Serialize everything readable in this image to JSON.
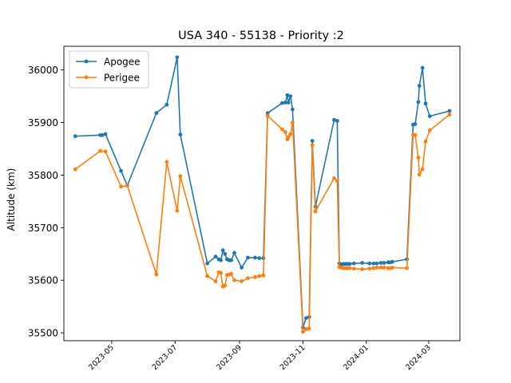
{
  "chart_data": {
    "type": "line",
    "title": "USA 340 - 55138 - Priority :2",
    "xlabel": "",
    "ylabel": "Altitude (km)",
    "x_type": "date",
    "xlim": [
      "2023-03-16",
      "2024-03-31"
    ],
    "ylim": [
      35485,
      36045
    ],
    "x_ticks": [
      "2023-05-01",
      "2023-07-01",
      "2023-09-01",
      "2023-11-01",
      "2024-01-01",
      "2024-03-01"
    ],
    "x_tick_labels": [
      "2023-05",
      "2023-07",
      "2023-09",
      "2023-11",
      "2024-01",
      "2024-03"
    ],
    "y_ticks": [
      35500,
      35600,
      35700,
      35800,
      35900,
      36000
    ],
    "y_tick_labels": [
      "35500",
      "35600",
      "35700",
      "35800",
      "35900",
      "36000"
    ],
    "grid": false,
    "legend_position": "top-left",
    "series": [
      {
        "name": "Apogee",
        "color": "#1f77b4",
        "points": [
          [
            "2023-03-27",
            35874
          ],
          [
            "2023-04-20",
            35876
          ],
          [
            "2023-04-22",
            35876
          ],
          [
            "2023-04-25",
            35878
          ],
          [
            "2023-05-10",
            35808
          ],
          [
            "2023-05-16",
            35780
          ],
          [
            "2023-06-13",
            35918
          ],
          [
            "2023-06-23",
            35934
          ],
          [
            "2023-07-03",
            36024
          ],
          [
            "2023-07-06",
            35877
          ],
          [
            "2023-08-01",
            35632
          ],
          [
            "2023-08-09",
            35645
          ],
          [
            "2023-08-12",
            35640
          ],
          [
            "2023-08-14",
            35638
          ],
          [
            "2023-08-16",
            35657
          ],
          [
            "2023-08-18",
            35650
          ],
          [
            "2023-08-20",
            35640
          ],
          [
            "2023-08-22",
            35638
          ],
          [
            "2023-08-24",
            35638
          ],
          [
            "2023-08-27",
            35652
          ],
          [
            "2023-09-03",
            35624
          ],
          [
            "2023-09-09",
            35643
          ],
          [
            "2023-09-16",
            35643
          ],
          [
            "2023-09-20",
            35642
          ],
          [
            "2023-09-24",
            35642
          ],
          [
            "2023-09-28",
            35918
          ],
          [
            "2023-10-12",
            35937
          ],
          [
            "2023-10-15",
            35938
          ],
          [
            "2023-10-17",
            35952
          ],
          [
            "2023-10-18",
            35938
          ],
          [
            "2023-10-20",
            35950
          ],
          [
            "2023-10-22",
            35925
          ],
          [
            "2023-11-01",
            35510
          ],
          [
            "2023-11-04",
            35528
          ],
          [
            "2023-11-07",
            35530
          ],
          [
            "2023-11-10",
            35865
          ],
          [
            "2023-11-13",
            35740
          ],
          [
            "2023-12-01",
            35905
          ],
          [
            "2023-12-04",
            35903
          ],
          [
            "2023-12-06",
            35632
          ],
          [
            "2023-12-08",
            35630
          ],
          [
            "2023-12-10",
            35631
          ],
          [
            "2023-12-12",
            35631
          ],
          [
            "2023-12-14",
            35631
          ],
          [
            "2023-12-16",
            35631
          ],
          [
            "2023-12-20",
            35632
          ],
          [
            "2023-12-28",
            35633
          ],
          [
            "2024-01-04",
            35632
          ],
          [
            "2024-01-08",
            35632
          ],
          [
            "2024-01-11",
            35632
          ],
          [
            "2024-01-15",
            35633
          ],
          [
            "2024-01-18",
            35633
          ],
          [
            "2024-01-22",
            35634
          ],
          [
            "2024-01-24",
            35634
          ],
          [
            "2024-01-26",
            35635
          ],
          [
            "2024-02-09",
            35640
          ],
          [
            "2024-02-15",
            35896
          ],
          [
            "2024-02-17",
            35897
          ],
          [
            "2024-02-20",
            35939
          ],
          [
            "2024-02-21",
            35970
          ],
          [
            "2024-02-24",
            36004
          ],
          [
            "2024-02-27",
            35936
          ],
          [
            "2024-03-02",
            35912
          ],
          [
            "2024-03-21",
            35922
          ]
        ]
      },
      {
        "name": "Perigee",
        "color": "#ff7f0e",
        "points": [
          [
            "2023-03-27",
            35811
          ],
          [
            "2023-04-20",
            35846
          ],
          [
            "2023-04-25",
            35845
          ],
          [
            "2023-05-10",
            35778
          ],
          [
            "2023-05-16",
            35780
          ],
          [
            "2023-06-13",
            35611
          ],
          [
            "2023-06-23",
            35825
          ],
          [
            "2023-07-03",
            35732
          ],
          [
            "2023-07-06",
            35798
          ],
          [
            "2023-08-01",
            35608
          ],
          [
            "2023-08-09",
            35598
          ],
          [
            "2023-08-12",
            35615
          ],
          [
            "2023-08-14",
            35614
          ],
          [
            "2023-08-16",
            35588
          ],
          [
            "2023-08-18",
            35590
          ],
          [
            "2023-08-20",
            35610
          ],
          [
            "2023-08-22",
            35611
          ],
          [
            "2023-08-24",
            35612
          ],
          [
            "2023-08-27",
            35600
          ],
          [
            "2023-09-03",
            35598
          ],
          [
            "2023-09-09",
            35604
          ],
          [
            "2023-09-16",
            35606
          ],
          [
            "2023-09-20",
            35608
          ],
          [
            "2023-09-24",
            35609
          ],
          [
            "2023-09-28",
            35913
          ],
          [
            "2023-10-12",
            35887
          ],
          [
            "2023-10-15",
            35882
          ],
          [
            "2023-10-17",
            35868
          ],
          [
            "2023-10-18",
            35872
          ],
          [
            "2023-10-20",
            35878
          ],
          [
            "2023-10-22",
            35900
          ],
          [
            "2023-11-01",
            35502
          ],
          [
            "2023-11-04",
            35507
          ],
          [
            "2023-11-07",
            35508
          ],
          [
            "2023-11-10",
            35857
          ],
          [
            "2023-11-13",
            35731
          ],
          [
            "2023-12-01",
            35794
          ],
          [
            "2023-12-04",
            35789
          ],
          [
            "2023-12-06",
            35625
          ],
          [
            "2023-12-08",
            35624
          ],
          [
            "2023-12-10",
            35623
          ],
          [
            "2023-12-12",
            35623
          ],
          [
            "2023-12-14",
            35623
          ],
          [
            "2023-12-16",
            35623
          ],
          [
            "2023-12-20",
            35622
          ],
          [
            "2023-12-28",
            35621
          ],
          [
            "2024-01-04",
            35622
          ],
          [
            "2024-01-08",
            35623
          ],
          [
            "2024-01-11",
            35624
          ],
          [
            "2024-01-15",
            35624
          ],
          [
            "2024-01-18",
            35624
          ],
          [
            "2024-01-22",
            35623
          ],
          [
            "2024-01-24",
            35623
          ],
          [
            "2024-01-26",
            35624
          ],
          [
            "2024-02-09",
            35623
          ],
          [
            "2024-02-15",
            35877
          ],
          [
            "2024-02-17",
            35876
          ],
          [
            "2024-02-20",
            35833
          ],
          [
            "2024-02-21",
            35801
          ],
          [
            "2024-02-24",
            35811
          ],
          [
            "2024-02-27",
            35864
          ],
          [
            "2024-03-02",
            35885
          ],
          [
            "2024-03-21",
            35915
          ]
        ]
      }
    ]
  }
}
